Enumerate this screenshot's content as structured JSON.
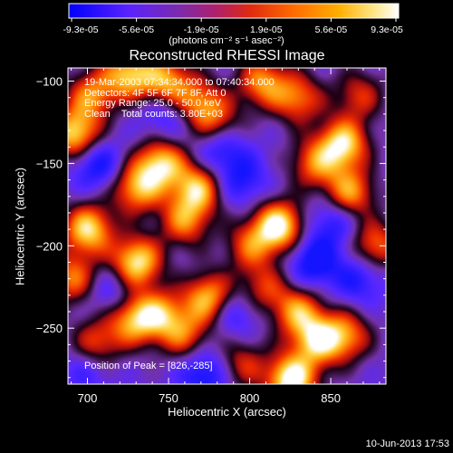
{
  "colorbar": {
    "ticks": [
      "-9.3e-05",
      "-5.6e-05",
      "-1.9e-05",
      "1.9e-05",
      "5.6e-05",
      "9.3e-05"
    ],
    "unit_label": "(photons cm⁻² s⁻¹ asec⁻²)",
    "colors": [
      "#1a1aff",
      "#6a2cff",
      "#8a3a9a",
      "#c8203a",
      "#ff3a00",
      "#ff9a00",
      "#ffe060",
      "#ffffff"
    ]
  },
  "chart_data": {
    "type": "heatmap",
    "title": "Reconstructed RHESSI Image",
    "xlabel": "Heliocentric X (arcsec)",
    "ylabel": "Heliocentric Y (arcsec)",
    "xlim": [
      688,
      884
    ],
    "ylim": [
      -284,
      -92
    ],
    "x_ticks": [
      700,
      750,
      800,
      850
    ],
    "y_ticks": [
      -100,
      -150,
      -200,
      -250
    ],
    "x_tick_labels": [
      "700",
      "750",
      "800",
      "850"
    ],
    "y_tick_labels": [
      "−100",
      "−150",
      "−200",
      "−250"
    ],
    "value_range": [
      -9.3e-05,
      9.3e-05
    ],
    "annotations": [
      "19-Mar-2003 07:34:34.000 to 07:40:34.000",
      "Detectors: 4F 5F 6F 7F 8F, Att 0",
      "Energy Range: 25.0 - 50.0 keV",
      "Clean    Total counts: 3.80E+03"
    ],
    "peak_label": "Position of Peak = [826,-285]",
    "peak": [
      826,
      -285
    ],
    "sources": [
      {
        "x": 692,
        "y": -132,
        "v": 0.85
      },
      {
        "x": 702,
        "y": -108,
        "v": 0.6
      },
      {
        "x": 725,
        "y": -95,
        "v": 0.75
      },
      {
        "x": 748,
        "y": -100,
        "v": 0.7
      },
      {
        "x": 768,
        "y": -112,
        "v": 0.55
      },
      {
        "x": 745,
        "y": -150,
        "v": 0.8
      },
      {
        "x": 730,
        "y": -165,
        "v": 0.7
      },
      {
        "x": 768,
        "y": -165,
        "v": 0.75
      },
      {
        "x": 760,
        "y": -185,
        "v": 0.6
      },
      {
        "x": 780,
        "y": -125,
        "v": 0.5
      },
      {
        "x": 808,
        "y": -100,
        "v": 0.65
      },
      {
        "x": 830,
        "y": -110,
        "v": 0.6
      },
      {
        "x": 858,
        "y": -138,
        "v": 0.85
      },
      {
        "x": 862,
        "y": -168,
        "v": 0.7
      },
      {
        "x": 840,
        "y": -150,
        "v": 0.55
      },
      {
        "x": 818,
        "y": -188,
        "v": 0.95
      },
      {
        "x": 700,
        "y": -190,
        "v": 0.85
      },
      {
        "x": 690,
        "y": -220,
        "v": 0.6
      },
      {
        "x": 705,
        "y": -260,
        "v": 0.55
      },
      {
        "x": 730,
        "y": -210,
        "v": 0.9
      },
      {
        "x": 745,
        "y": -242,
        "v": 0.6
      },
      {
        "x": 728,
        "y": -245,
        "v": 0.7
      },
      {
        "x": 760,
        "y": -255,
        "v": 0.5
      },
      {
        "x": 775,
        "y": -232,
        "v": 0.8
      },
      {
        "x": 795,
        "y": -272,
        "v": 0.45
      },
      {
        "x": 800,
        "y": -200,
        "v": 0.5
      },
      {
        "x": 830,
        "y": -240,
        "v": 0.65
      },
      {
        "x": 842,
        "y": -258,
        "v": 0.75
      },
      {
        "x": 860,
        "y": -255,
        "v": 0.6
      },
      {
        "x": 878,
        "y": -200,
        "v": 0.6
      },
      {
        "x": 826,
        "y": -282,
        "v": 1.0
      },
      {
        "x": 808,
        "y": -226,
        "v": 0.45
      },
      {
        "x": 868,
        "y": -108,
        "v": 0.45
      }
    ],
    "sinks": [
      {
        "x": 705,
        "y": -150,
        "v": 0.5
      },
      {
        "x": 782,
        "y": -140,
        "v": 0.45
      },
      {
        "x": 795,
        "y": -160,
        "v": 0.4
      },
      {
        "x": 748,
        "y": -120,
        "v": 0.35
      },
      {
        "x": 840,
        "y": -210,
        "v": 0.55
      },
      {
        "x": 868,
        "y": -220,
        "v": 0.4
      },
      {
        "x": 790,
        "y": -240,
        "v": 0.4
      },
      {
        "x": 772,
        "y": -278,
        "v": 0.5
      },
      {
        "x": 700,
        "y": -275,
        "v": 0.3
      },
      {
        "x": 852,
        "y": -185,
        "v": 0.4
      },
      {
        "x": 715,
        "y": -228,
        "v": 0.3
      }
    ]
  },
  "footer": {
    "date": "10-Jun-2013 17:53"
  }
}
